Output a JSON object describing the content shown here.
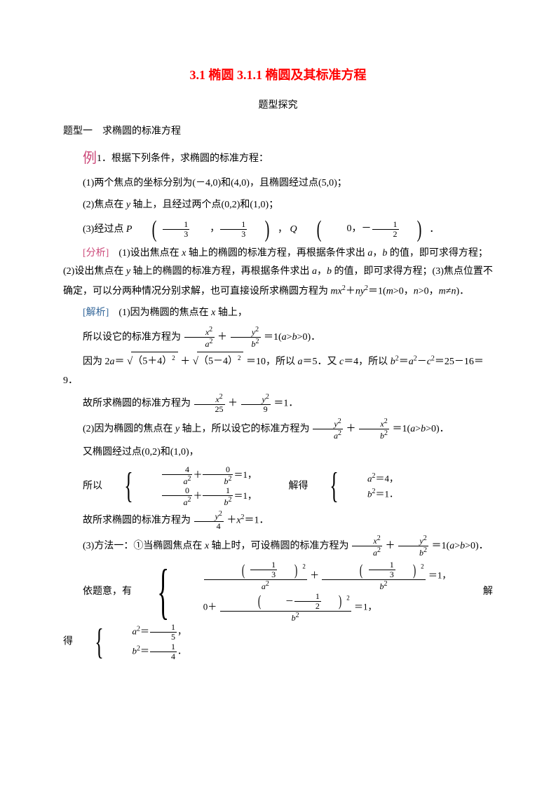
{
  "colors": {
    "title": "#ff0000",
    "example": "#cc4a7a",
    "analysis": "#cc4a7a",
    "solution": "#336699",
    "text": "#000000",
    "background": "#ffffff"
  },
  "typography": {
    "title_fontsize": 18,
    "body_fontsize": 14,
    "line_height": 1.9,
    "font_family": "SimSun"
  },
  "title": "3.1 椭圆 3.1.1 椭圆及其标准方程",
  "subtitle": "题型探究",
  "section_heading": "题型一　求椭圆的标准方程",
  "example_label": "例",
  "example_num": "1．根据下列条件，求椭圆的标准方程：",
  "item1": "(1)两个焦点的坐标分别为(－4,0)和(4,0)，且椭圆经过点(5,0)；",
  "item2_head": "(2)焦点在 ",
  "item2_y": "y",
  "item2_tail": " 轴上，且经过两个点(0,2)和(1,0)；",
  "item3_head": "(3)经过点 ",
  "item3_P": "P",
  "item3_mid": "， ",
  "item3_Q": "Q",
  "item3_tail": "．",
  "frac_1_3": {
    "num": "1",
    "den": "3"
  },
  "frac_neg_1_2": {
    "num": "1",
    "den": "2"
  },
  "zero": "0，－",
  "analysis_label": "[分析]",
  "analysis_1": "　(1)设出焦点在 ",
  "analysis_x": "x",
  "analysis_2": " 轴上的椭圆的标准方程，再根据条件求出 ",
  "analysis_a": "a",
  "analysis_3": "，",
  "analysis_b": "b",
  "analysis_4": " 的值，即可求得方程；(2)设出焦点在 ",
  "analysis_y": "y",
  "analysis_5": " 轴上的椭圆的标准方程，再根据条件求出 ",
  "analysis_6": " 的值，即可求得方程；(3)焦点位置不确定，可以分两种情况分别求解，也可直接设所求椭圆方程为 ",
  "analysis_mx": "mx",
  "analysis_plus": "＋",
  "analysis_ny": "ny",
  "analysis_7": "＝1(",
  "analysis_m": "m",
  "analysis_8": ">0，",
  "analysis_n": "n",
  "analysis_9": ">0，",
  "analysis_10": "≠",
  "analysis_11": ")．",
  "solution_label": "[解析]",
  "sol1_head": "　(1)因为椭圆的焦点在 ",
  "sol1_x": "x",
  "sol1_tail": " 轴上，",
  "sol1_line2a": "所以设它的标准方程为",
  "std_eq_x2": "x",
  "std_eq_a2": "a",
  "std_eq_y2": "y",
  "std_eq_b2": "b",
  "std_eq_tail": "＝1(",
  "std_eq_a": "a",
  "std_eq_gt": ">",
  "std_eq_b": "b",
  "std_eq_end": ">0)．",
  "sol1_line3a": "因为 2",
  "sol1_line3b": "＝",
  "sqrt1": "（5＋4）",
  "sqrt1_exp": "2",
  "sol1_line3c": "＋",
  "sqrt2": "（5－4）",
  "sqrt2_exp": "2",
  "sol1_line3d": "＝10，所以 ",
  "sol1_line3e": "＝5．又 ",
  "sol1_c": "c",
  "sol1_line3f": "＝4，所以 ",
  "sol1_line3g": "＝",
  "sol1_line3h": "－",
  "sol1_line3i": "＝25－16＝9．",
  "sol1_line4": "故所求椭圆的标准方程为",
  "frac_x2_25": {
    "num_var": "x",
    "den": "25"
  },
  "frac_y2_9": {
    "num_var": "y",
    "den": "9"
  },
  "eq1_tail": "＝1．",
  "sol2_head": "(2)因为椭圆的焦点在 ",
  "sol2_tail": " 轴上，所以设它的标准方程为",
  "sol2_line2": "又椭圆经过点(0,2)和(1,0)，",
  "sol2_sys_head": "所以",
  "sys1_eq1_a": "4",
  "sys1_eq1_b": "0",
  "sys1_eq2_a": "0",
  "sys1_eq2_b": "1",
  "sys_solve": "解得",
  "sys1_res1": "＝4，",
  "sys1_res2": "＝1．",
  "sol2_line4": "故所求椭圆的标准方程为",
  "frac_y2_4": {
    "num_var": "y",
    "den": "4"
  },
  "sol2_line4_plus": "＋",
  "sol2_line4_x2": "x",
  "sol2_line4_tail": "＝1．",
  "sol3_head": "(3)方法一：①当椭圆焦点在 ",
  "sol3_tail": " 轴上时，可设椭圆的标准方程为",
  "sol3_sys_head": "依题意，有",
  "sys2_eq1_num": "1",
  "sys2_eq1_den": "3",
  "sys2_eq2_num": "1",
  "sys2_eq2_den": "2",
  "sys2_zero": "0＋",
  "sys2_eqend": "＝1，",
  "sys2_res1_a": "＝",
  "sys2_res1_b": "，",
  "sys2_res2_a": "＝",
  "sys2_res2_b": "．",
  "frac_1_5": {
    "num": "1",
    "den": "5"
  },
  "frac_1_4": {
    "num": "1",
    "den": "4"
  },
  "a_var": "a",
  "b_var": "b",
  "plus": "＋",
  "comma": "，",
  "neg": "－",
  "two": "2"
}
